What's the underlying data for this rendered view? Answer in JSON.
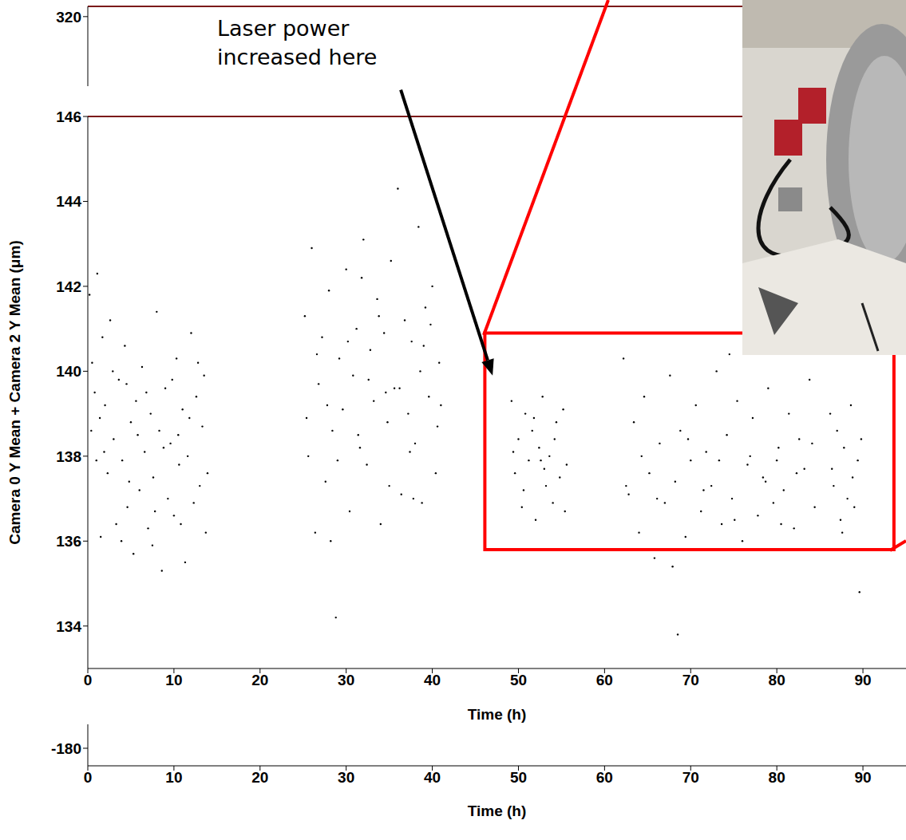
{
  "chart_data": [
    {
      "type": "scatter",
      "xlabel": "Time (h)",
      "ylabel": "Camera 0 Y Mean + Camera 2 Y Mean (μm)",
      "xlim": [
        0,
        95
      ],
      "ylim": [
        133,
        146
      ],
      "xticks": [
        0,
        10,
        20,
        30,
        40,
        50,
        60,
        70,
        80,
        90
      ],
      "yticks": [
        134,
        136,
        138,
        140,
        142,
        144,
        146
      ],
      "color": "#000000",
      "marker": "dot",
      "x": [
        0.2,
        0.5,
        0.8,
        1.1,
        1.4,
        1.7,
        2.0,
        2.3,
        2.6,
        3.0,
        3.3,
        3.6,
        4.0,
        4.3,
        4.6,
        5.0,
        5.3,
        5.6,
        6.0,
        6.3,
        6.6,
        7.0,
        7.3,
        7.6,
        8.0,
        8.3,
        8.6,
        9.0,
        9.3,
        9.6,
        10.0,
        10.3,
        10.6,
        11.0,
        11.3,
        11.6,
        12.0,
        12.3,
        12.6,
        13.0,
        13.3,
        13.7,
        0.4,
        1.0,
        1.9,
        2.9,
        3.9,
        4.8,
        5.8,
        6.8,
        7.8,
        8.8,
        9.8,
        10.8,
        11.8,
        12.8,
        13.9,
        1.5,
        4.5,
        7.5,
        10.5,
        13.5,
        25.2,
        25.6,
        26.0,
        26.4,
        26.8,
        27.2,
        27.6,
        28.0,
        28.4,
        28.8,
        29.2,
        29.6,
        30.0,
        30.4,
        30.8,
        31.2,
        31.6,
        32.0,
        32.4,
        32.8,
        33.2,
        33.6,
        34.0,
        34.4,
        34.8,
        35.2,
        35.6,
        36.0,
        36.4,
        36.8,
        37.2,
        37.6,
        38.0,
        38.4,
        38.8,
        39.2,
        39.6,
        40.0,
        40.4,
        40.8,
        25.4,
        26.6,
        27.8,
        29.0,
        30.2,
        31.4,
        32.6,
        33.8,
        35.0,
        36.2,
        37.4,
        38.6,
        39.8,
        40.6,
        28.2,
        31.8,
        34.6,
        37.8,
        39.0,
        41.0,
        49.2,
        49.6,
        50.0,
        50.4,
        50.8,
        51.2,
        51.6,
        52.0,
        52.4,
        52.8,
        53.2,
        53.6,
        54.0,
        54.4,
        54.8,
        55.2,
        55.6,
        49.4,
        50.6,
        51.8,
        53.0,
        54.2,
        55.4,
        52.6,
        62.2,
        62.8,
        63.4,
        64.0,
        64.6,
        65.2,
        65.8,
        66.4,
        67.0,
        67.6,
        68.2,
        68.8,
        69.4,
        70.0,
        70.6,
        71.2,
        71.8,
        72.4,
        73.0,
        73.6,
        74.2,
        74.8,
        75.4,
        76.0,
        76.6,
        77.2,
        77.8,
        78.4,
        79.0,
        79.6,
        80.2,
        80.8,
        81.4,
        82.0,
        82.6,
        83.2,
        83.8,
        84.4,
        62.5,
        64.3,
        66.1,
        67.9,
        69.7,
        71.5,
        73.3,
        75.1,
        76.9,
        78.7,
        80.5,
        82.3,
        84.1,
        68.5,
        74.5,
        80.0,
        86.2,
        86.6,
        87.0,
        87.4,
        87.8,
        88.2,
        88.6,
        89.0,
        89.4,
        89.8,
        86.4,
        87.6,
        88.8,
        89.6
      ],
      "values": [
        141.8,
        140.2,
        139.5,
        142.3,
        138.9,
        140.8,
        139.2,
        137.6,
        141.2,
        138.4,
        136.4,
        139.8,
        137.9,
        140.6,
        136.8,
        138.8,
        135.7,
        139.3,
        137.2,
        140.1,
        138.1,
        136.3,
        139.0,
        137.5,
        141.4,
        138.6,
        135.3,
        139.6,
        137.0,
        138.3,
        136.6,
        140.3,
        137.8,
        139.1,
        135.5,
        138.0,
        140.9,
        136.9,
        139.4,
        137.3,
        138.7,
        136.2,
        138.6,
        137.9,
        138.1,
        140.0,
        136.0,
        137.4,
        138.5,
        139.5,
        136.7,
        138.2,
        139.8,
        136.4,
        138.9,
        140.2,
        137.6,
        136.1,
        139.7,
        135.9,
        138.5,
        139.9,
        141.3,
        138.0,
        142.9,
        136.2,
        139.7,
        140.8,
        137.4,
        141.9,
        138.6,
        134.2,
        140.3,
        139.1,
        142.4,
        136.7,
        139.9,
        141.0,
        138.2,
        143.1,
        137.8,
        140.5,
        139.3,
        141.7,
        136.4,
        140.9,
        138.8,
        142.6,
        139.6,
        144.3,
        137.1,
        141.2,
        139.0,
        140.7,
        138.3,
        143.4,
        136.9,
        141.5,
        139.4,
        142.0,
        137.6,
        140.2,
        138.9,
        140.4,
        139.2,
        137.9,
        140.7,
        138.5,
        139.8,
        141.3,
        137.3,
        139.6,
        138.1,
        140.0,
        141.1,
        138.7,
        136.0,
        142.2,
        139.5,
        137.0,
        140.6,
        139.2,
        139.3,
        137.6,
        138.4,
        136.8,
        139.0,
        137.9,
        138.6,
        136.5,
        138.2,
        139.4,
        137.3,
        138.0,
        136.9,
        138.8,
        137.5,
        139.1,
        137.8,
        138.1,
        137.2,
        138.9,
        137.7,
        138.4,
        136.7,
        137.9,
        140.3,
        137.1,
        138.8,
        136.2,
        139.4,
        137.6,
        135.6,
        138.3,
        136.9,
        139.9,
        137.4,
        138.6,
        136.1,
        137.9,
        139.2,
        136.7,
        138.1,
        137.3,
        140.0,
        136.4,
        138.5,
        137.0,
        139.3,
        136.0,
        137.8,
        138.9,
        136.6,
        137.5,
        139.6,
        136.9,
        138.2,
        137.2,
        139.0,
        136.3,
        138.4,
        137.7,
        139.8,
        136.8,
        137.3,
        138.0,
        137.0,
        135.4,
        138.4,
        137.2,
        137.9,
        136.5,
        138.0,
        137.4,
        136.4,
        137.6,
        138.3,
        133.8,
        140.4,
        137.9,
        139.0,
        137.3,
        138.6,
        136.5,
        138.2,
        137.0,
        139.2,
        136.8,
        137.9,
        138.4,
        137.7,
        136.2,
        137.5,
        134.8
      ],
      "annotations": [
        {
          "text": "Laser power increased here",
          "x": 47,
          "y": 139.9
        }
      ],
      "highlight": {
        "x": [
          46.1,
          93.6
        ],
        "y": [
          135.8,
          140.9
        ],
        "color": "#ff0000"
      }
    },
    {
      "type": "scatter",
      "xlabel": "Time (h)",
      "xlim": [
        0,
        95
      ],
      "ylim": [
        -192,
        327
      ],
      "xticks": [
        0,
        10,
        20,
        30,
        40,
        50,
        60,
        70,
        80,
        90
      ],
      "yticks": [
        320,
        -180
      ],
      "x": [],
      "values": []
    }
  ]
}
